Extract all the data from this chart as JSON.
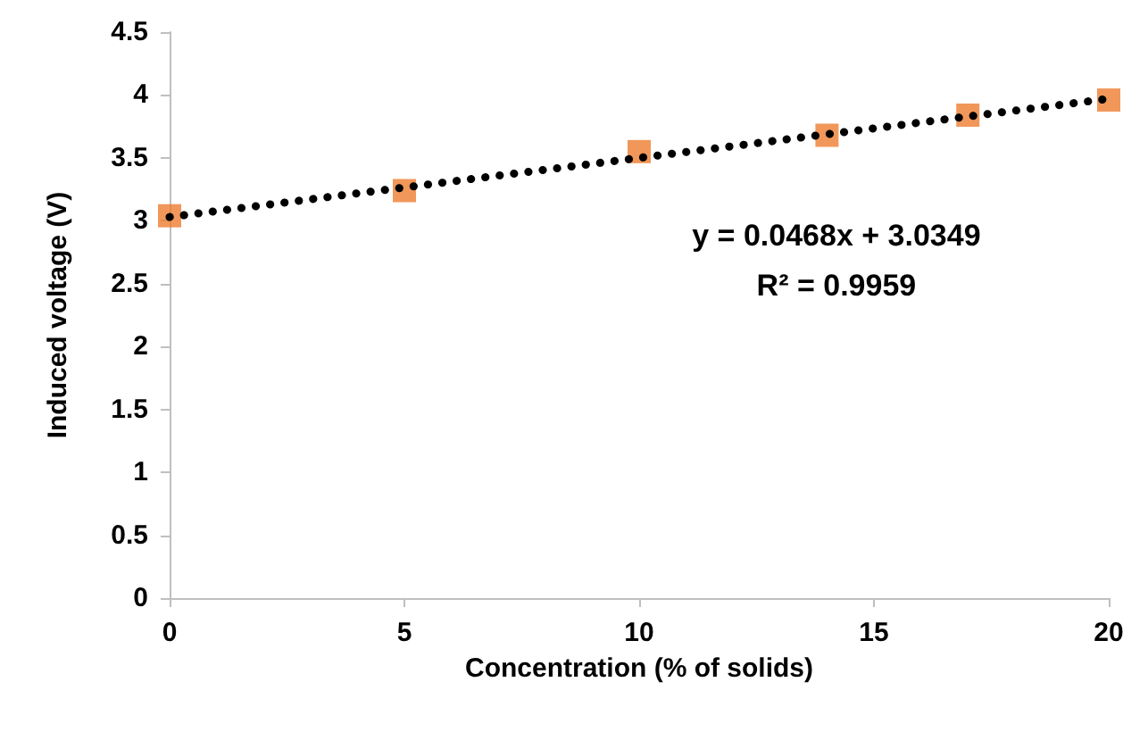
{
  "chart_data": {
    "type": "scatter",
    "xlabel": "Concentration (% of solids)",
    "ylabel": "Induced voltage (V)",
    "xlim": [
      0,
      20
    ],
    "xticks": [
      0,
      5,
      10,
      15,
      20
    ],
    "ylim": [
      0,
      4.5
    ],
    "yticks": [
      0,
      0.5,
      1,
      1.5,
      2,
      2.5,
      3,
      3.5,
      4,
      4.5
    ],
    "grid": false,
    "marker": "square",
    "series": [
      {
        "color": "#ed7d31",
        "x": [
          0,
          5,
          10,
          14,
          17,
          20
        ],
        "values": [
          3.04,
          3.24,
          3.55,
          3.68,
          3.84,
          3.96
        ]
      },
      {
        "type": "line",
        "color": "#000000",
        "line_style": "dotted",
        "marker": "none",
        "x": [
          0,
          20
        ],
        "values": [
          3.03,
          3.97
        ]
      }
    ],
    "annotations": [
      "y = 0.0468x + 3.0349",
      "R² = 0.9959"
    ]
  }
}
